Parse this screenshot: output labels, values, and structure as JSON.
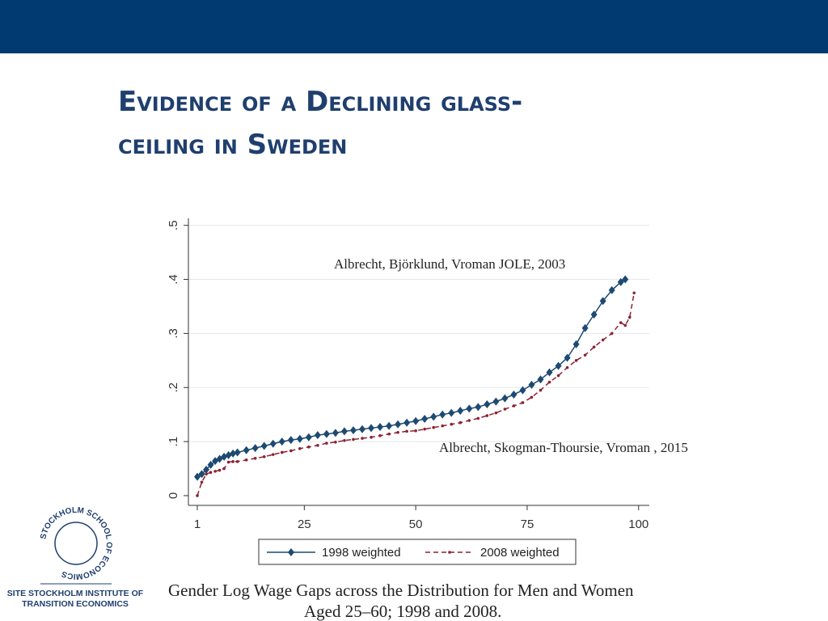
{
  "slide": {
    "title_lines": [
      "Evidence of a Declining glass-",
      "ceiling in Sweden"
    ]
  },
  "logo": {
    "ring": "STOCKHOLM SCHOOL OF ECONOMICS",
    "line1": "SITE STOCKHOLM INSTITUTE OF",
    "line2": "TRANSITION ECONOMICS"
  },
  "chart_data": {
    "type": "line",
    "annotations": [
      "Albrecht, Björklund, Vroman JOLE, 2003",
      "Albrecht, Skogman-Thoursie, Vroman , 2015"
    ],
    "caption_lines": [
      "Gender Log Wage Gaps across the Distribution for Men and Women",
      "Aged 25–60; 1998 and 2008."
    ],
    "xlim": [
      -1,
      102.4
    ],
    "xticks": [
      1,
      25,
      50,
      75,
      100
    ],
    "ylim": [
      -0.018,
      0.513
    ],
    "yticks": [
      0,
      {
        "value": 0.1,
        "label": ".1"
      },
      {
        "value": 0.2,
        "label": ".2"
      },
      {
        "value": 0.3,
        "label": ".3"
      },
      {
        "value": 0.4,
        "label": ".4"
      },
      {
        "value": 0.5,
        "label": ".5"
      }
    ],
    "grid": true,
    "series": [
      {
        "name": "1998 weighted",
        "color": "#1d4a72",
        "marker": "diamond",
        "dash": false,
        "x": [
          1,
          2,
          3,
          4,
          5,
          6,
          7,
          8,
          9,
          10,
          12,
          14,
          16,
          18,
          20,
          22,
          24,
          26,
          28,
          30,
          32,
          34,
          36,
          38,
          40,
          42,
          44,
          46,
          48,
          50,
          52,
          54,
          56,
          58,
          60,
          62,
          64,
          66,
          68,
          70,
          72,
          74,
          76,
          78,
          80,
          82,
          84,
          86,
          88,
          90,
          92,
          94,
          96,
          97
        ],
        "values": [
          0.035,
          0.04,
          0.048,
          0.057,
          0.064,
          0.068,
          0.072,
          0.075,
          0.078,
          0.08,
          0.084,
          0.088,
          0.092,
          0.096,
          0.1,
          0.103,
          0.105,
          0.108,
          0.112,
          0.114,
          0.116,
          0.119,
          0.121,
          0.123,
          0.125,
          0.127,
          0.129,
          0.132,
          0.135,
          0.138,
          0.142,
          0.146,
          0.15,
          0.153,
          0.157,
          0.161,
          0.164,
          0.169,
          0.174,
          0.18,
          0.187,
          0.195,
          0.205,
          0.215,
          0.228,
          0.24,
          0.255,
          0.28,
          0.31,
          0.335,
          0.36,
          0.38,
          0.395,
          0.4
        ]
      },
      {
        "name": "2008 weighted",
        "color": "#8b2232",
        "marker": "dot",
        "dash": true,
        "x": [
          1,
          2,
          3,
          4,
          5,
          6,
          7,
          8,
          9,
          10,
          12,
          14,
          16,
          18,
          20,
          22,
          24,
          26,
          28,
          30,
          32,
          34,
          36,
          38,
          40,
          42,
          44,
          46,
          48,
          50,
          52,
          54,
          56,
          58,
          60,
          62,
          64,
          66,
          68,
          70,
          72,
          74,
          76,
          78,
          80,
          82,
          84,
          86,
          88,
          90,
          92,
          94,
          96,
          97,
          98,
          99
        ],
        "values": [
          0,
          0.025,
          0.04,
          0.043,
          0.045,
          0.047,
          0.05,
          0.062,
          0.063,
          0.063,
          0.066,
          0.069,
          0.072,
          0.076,
          0.08,
          0.083,
          0.087,
          0.09,
          0.093,
          0.097,
          0.099,
          0.102,
          0.104,
          0.106,
          0.108,
          0.111,
          0.114,
          0.117,
          0.119,
          0.12,
          0.123,
          0.126,
          0.129,
          0.132,
          0.135,
          0.139,
          0.143,
          0.148,
          0.153,
          0.16,
          0.166,
          0.172,
          0.182,
          0.195,
          0.21,
          0.222,
          0.237,
          0.25,
          0.26,
          0.275,
          0.288,
          0.3,
          0.32,
          0.315,
          0.33,
          0.375
        ]
      }
    ]
  }
}
